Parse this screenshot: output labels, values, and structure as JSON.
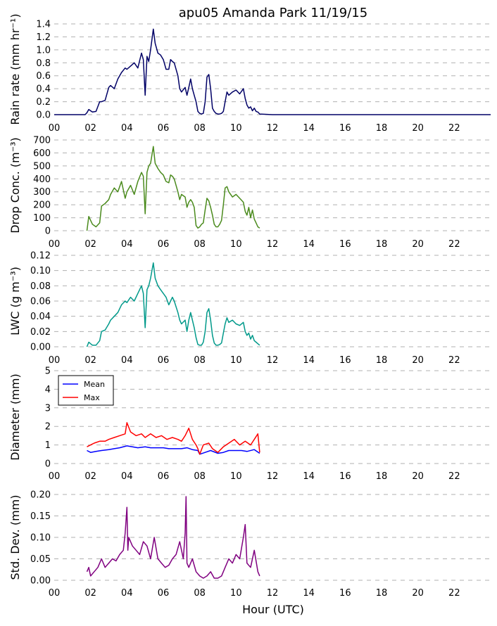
{
  "title": "apu05 Amanda Park 11/19/15",
  "xlabel": "Hour (UTC)",
  "chart_data": [
    {
      "type": "line",
      "ylabel": "Rain rate (mm hr⁻¹)",
      "ylim": [
        0,
        1.4
      ],
      "yticks": [
        "0.0",
        "0.2",
        "0.4",
        "0.6",
        "0.8",
        "1.0",
        "1.2",
        "1.4"
      ],
      "xlim": [
        0,
        24
      ],
      "xticks": [
        "00",
        "02",
        "04",
        "06",
        "08",
        "10",
        "12",
        "14",
        "16",
        "18",
        "20",
        "22"
      ],
      "grid": true,
      "series": [
        {
          "color": "#000066",
          "x": [
            0,
            1.7,
            1.8,
            1.9,
            2.0,
            2.1,
            2.3,
            2.5,
            2.6,
            2.8,
            3.0,
            3.1,
            3.3,
            3.5,
            3.7,
            3.9,
            4.0,
            4.2,
            4.4,
            4.6,
            4.8,
            4.9,
            5.0,
            5.1,
            5.2,
            5.3,
            5.45,
            5.55,
            5.7,
            5.85,
            6.0,
            6.15,
            6.3,
            6.4,
            6.5,
            6.6,
            6.8,
            6.9,
            7.0,
            7.2,
            7.3,
            7.4,
            7.5,
            7.6,
            7.7,
            7.8,
            7.9,
            8.0,
            8.1,
            8.2,
            8.3,
            8.4,
            8.5,
            8.6,
            8.7,
            8.8,
            8.9,
            9.0,
            9.1,
            9.2,
            9.3,
            9.4,
            9.5,
            9.6,
            9.8,
            10.0,
            10.2,
            10.4,
            10.5,
            10.6,
            10.7,
            10.8,
            10.9,
            11.0,
            11.1,
            11.2,
            11.3,
            12,
            24
          ],
          "y": [
            0,
            0,
            0.03,
            0.08,
            0.06,
            0.04,
            0.05,
            0.2,
            0.2,
            0.22,
            0.42,
            0.45,
            0.4,
            0.55,
            0.65,
            0.72,
            0.7,
            0.75,
            0.8,
            0.72,
            0.95,
            0.85,
            0.3,
            0.9,
            0.82,
            1.0,
            1.32,
            1.1,
            0.95,
            0.92,
            0.85,
            0.7,
            0.7,
            0.85,
            0.82,
            0.8,
            0.6,
            0.4,
            0.35,
            0.42,
            0.3,
            0.42,
            0.55,
            0.4,
            0.3,
            0.2,
            0.05,
            0.02,
            0.01,
            0.02,
            0.2,
            0.58,
            0.62,
            0.4,
            0.1,
            0.05,
            0.02,
            0.01,
            0.01,
            0.02,
            0.05,
            0.2,
            0.35,
            0.3,
            0.35,
            0.38,
            0.32,
            0.4,
            0.25,
            0.15,
            0.1,
            0.12,
            0.06,
            0.1,
            0.05,
            0.04,
            0.01,
            0,
            0
          ]
        }
      ]
    },
    {
      "type": "line",
      "ylabel": "Drop Conc. (m⁻³)",
      "ylim": [
        0,
        700
      ],
      "yticks": [
        "0",
        "100",
        "200",
        "300",
        "400",
        "500",
        "600",
        "700"
      ],
      "xlim": [
        0,
        24
      ],
      "xticks": [
        "00",
        "02",
        "04",
        "06",
        "08",
        "10",
        "12",
        "14",
        "16",
        "18",
        "20",
        "22"
      ],
      "grid": true,
      "series": [
        {
          "color": "#4a8a1c",
          "x": [
            1.8,
            1.9,
            2.0,
            2.1,
            2.3,
            2.5,
            2.6,
            2.8,
            3.0,
            3.1,
            3.3,
            3.5,
            3.7,
            3.9,
            4.0,
            4.2,
            4.4,
            4.6,
            4.8,
            4.9,
            5.0,
            5.1,
            5.2,
            5.3,
            5.45,
            5.55,
            5.7,
            5.85,
            6.0,
            6.15,
            6.3,
            6.4,
            6.5,
            6.6,
            6.8,
            6.9,
            7.0,
            7.2,
            7.3,
            7.4,
            7.5,
            7.6,
            7.7,
            7.8,
            7.9,
            8.0,
            8.1,
            8.2,
            8.3,
            8.4,
            8.5,
            8.6,
            8.7,
            8.8,
            8.9,
            9.0,
            9.1,
            9.2,
            9.3,
            9.4,
            9.5,
            9.6,
            9.8,
            10.0,
            10.2,
            10.4,
            10.5,
            10.6,
            10.7,
            10.8,
            10.9,
            11.0,
            11.1,
            11.2,
            11.3
          ],
          "y": [
            0,
            110,
            80,
            50,
            30,
            60,
            190,
            210,
            240,
            280,
            330,
            300,
            380,
            250,
            300,
            350,
            280,
            380,
            450,
            420,
            130,
            450,
            500,
            520,
            650,
            520,
            480,
            450,
            430,
            380,
            370,
            430,
            420,
            400,
            300,
            240,
            280,
            260,
            180,
            220,
            240,
            220,
            180,
            40,
            20,
            30,
            50,
            60,
            160,
            250,
            230,
            180,
            120,
            50,
            30,
            30,
            50,
            80,
            200,
            330,
            340,
            300,
            260,
            280,
            250,
            220,
            150,
            120,
            180,
            100,
            160,
            90,
            60,
            30,
            20
          ]
        }
      ]
    },
    {
      "type": "line",
      "ylabel": "LWC (g m⁻³)",
      "ylim": [
        0,
        0.12
      ],
      "yticks": [
        "0.00",
        "0.02",
        "0.04",
        "0.06",
        "0.08",
        "0.10",
        "0.12"
      ],
      "xlim": [
        0,
        24
      ],
      "xticks": [
        "00",
        "02",
        "04",
        "06",
        "08",
        "10",
        "12",
        "14",
        "16",
        "18",
        "20",
        "22"
      ],
      "grid": true,
      "series": [
        {
          "color": "#00998a",
          "x": [
            1.8,
            1.9,
            2.0,
            2.1,
            2.3,
            2.5,
            2.6,
            2.8,
            3.0,
            3.1,
            3.3,
            3.5,
            3.7,
            3.9,
            4.0,
            4.2,
            4.4,
            4.6,
            4.8,
            4.9,
            5.0,
            5.1,
            5.2,
            5.3,
            5.45,
            5.55,
            5.7,
            5.85,
            6.0,
            6.15,
            6.3,
            6.4,
            6.5,
            6.6,
            6.8,
            6.9,
            7.0,
            7.2,
            7.3,
            7.4,
            7.5,
            7.6,
            7.7,
            7.8,
            7.9,
            8.0,
            8.1,
            8.2,
            8.3,
            8.4,
            8.5,
            8.6,
            8.7,
            8.8,
            8.9,
            9.0,
            9.1,
            9.2,
            9.3,
            9.4,
            9.5,
            9.6,
            9.8,
            10.0,
            10.2,
            10.4,
            10.5,
            10.6,
            10.7,
            10.8,
            10.9,
            11.0,
            11.1,
            11.2,
            11.3
          ],
          "y": [
            0,
            0.006,
            0.004,
            0.002,
            0.002,
            0.008,
            0.02,
            0.022,
            0.03,
            0.035,
            0.04,
            0.045,
            0.055,
            0.06,
            0.058,
            0.065,
            0.06,
            0.07,
            0.08,
            0.07,
            0.025,
            0.075,
            0.08,
            0.09,
            0.11,
            0.09,
            0.08,
            0.075,
            0.07,
            0.065,
            0.055,
            0.06,
            0.065,
            0.06,
            0.045,
            0.035,
            0.03,
            0.035,
            0.02,
            0.035,
            0.045,
            0.035,
            0.025,
            0.012,
            0.003,
            0.002,
            0.002,
            0.006,
            0.02,
            0.045,
            0.05,
            0.035,
            0.015,
            0.005,
            0.002,
            0.002,
            0.003,
            0.005,
            0.018,
            0.03,
            0.038,
            0.032,
            0.035,
            0.03,
            0.028,
            0.032,
            0.02,
            0.015,
            0.018,
            0.01,
            0.015,
            0.008,
            0.006,
            0.004,
            0.002
          ]
        }
      ]
    },
    {
      "type": "line",
      "ylabel": "Diameter (mm)",
      "ylim": [
        0,
        5
      ],
      "yticks": [
        "0",
        "1",
        "2",
        "3",
        "4",
        "5"
      ],
      "xlim": [
        0,
        24
      ],
      "xticks": [
        "00",
        "02",
        "04",
        "06",
        "08",
        "10",
        "12",
        "14",
        "16",
        "18",
        "20",
        "22"
      ],
      "grid": true,
      "legend": "upper-left",
      "series": [
        {
          "name": "Mean",
          "color": "#0000ff",
          "x": [
            1.8,
            2.0,
            2.3,
            2.6,
            3.0,
            3.3,
            3.6,
            4.0,
            4.3,
            4.6,
            5.0,
            5.3,
            5.6,
            6.0,
            6.3,
            6.6,
            7.0,
            7.3,
            7.6,
            7.9,
            8.0,
            8.3,
            8.6,
            9.0,
            9.3,
            9.6,
            10.0,
            10.3,
            10.6,
            11.0,
            11.3
          ],
          "y": [
            0.7,
            0.6,
            0.65,
            0.7,
            0.75,
            0.8,
            0.85,
            0.95,
            0.9,
            0.85,
            0.9,
            0.85,
            0.85,
            0.85,
            0.8,
            0.8,
            0.8,
            0.85,
            0.75,
            0.7,
            0.5,
            0.6,
            0.7,
            0.55,
            0.6,
            0.7,
            0.7,
            0.7,
            0.65,
            0.75,
            0.55
          ]
        },
        {
          "name": "Max",
          "color": "#ff0000",
          "x": [
            1.8,
            2.0,
            2.2,
            2.5,
            2.8,
            3.0,
            3.3,
            3.6,
            3.9,
            4.0,
            4.2,
            4.5,
            4.8,
            5.0,
            5.3,
            5.6,
            5.9,
            6.2,
            6.5,
            6.8,
            7.0,
            7.2,
            7.4,
            7.6,
            7.8,
            7.9,
            8.0,
            8.2,
            8.5,
            8.7,
            9.0,
            9.3,
            9.6,
            9.9,
            10.2,
            10.5,
            10.8,
            11.0,
            11.2,
            11.3
          ],
          "y": [
            0.9,
            1.0,
            1.1,
            1.2,
            1.2,
            1.3,
            1.4,
            1.5,
            1.6,
            2.2,
            1.7,
            1.5,
            1.6,
            1.4,
            1.6,
            1.4,
            1.5,
            1.3,
            1.4,
            1.3,
            1.2,
            1.5,
            1.9,
            1.3,
            1.0,
            0.8,
            0.5,
            1.0,
            1.1,
            0.8,
            0.6,
            0.9,
            1.1,
            1.3,
            1.0,
            1.2,
            1.0,
            1.3,
            1.6,
            0.6
          ]
        }
      ]
    },
    {
      "type": "line",
      "ylabel": "Std. Dev. (mm)",
      "ylim": [
        0,
        0.2
      ],
      "yticks": [
        "0.00",
        "0.05",
        "0.10",
        "0.15",
        "0.20"
      ],
      "xlim": [
        0,
        24
      ],
      "xticks": [
        "00",
        "02",
        "04",
        "06",
        "08",
        "10",
        "12",
        "14",
        "16",
        "18",
        "20",
        "22"
      ],
      "grid": true,
      "series": [
        {
          "color": "#800080",
          "x": [
            1.8,
            1.9,
            2.0,
            2.2,
            2.4,
            2.6,
            2.8,
            3.0,
            3.2,
            3.4,
            3.6,
            3.8,
            3.9,
            4.0,
            4.05,
            4.1,
            4.3,
            4.5,
            4.7,
            4.9,
            5.1,
            5.3,
            5.5,
            5.7,
            5.9,
            6.1,
            6.3,
            6.5,
            6.7,
            6.9,
            7.1,
            7.2,
            7.25,
            7.3,
            7.4,
            7.6,
            7.8,
            8.0,
            8.2,
            8.4,
            8.6,
            8.8,
            9.0,
            9.2,
            9.4,
            9.6,
            9.8,
            10.0,
            10.2,
            10.4,
            10.5,
            10.6,
            10.8,
            11.0,
            11.2,
            11.3
          ],
          "y": [
            0.02,
            0.03,
            0.01,
            0.02,
            0.03,
            0.05,
            0.03,
            0.04,
            0.05,
            0.045,
            0.06,
            0.07,
            0.11,
            0.17,
            0.07,
            0.1,
            0.08,
            0.07,
            0.06,
            0.09,
            0.08,
            0.05,
            0.1,
            0.05,
            0.04,
            0.03,
            0.035,
            0.05,
            0.06,
            0.09,
            0.05,
            0.11,
            0.195,
            0.04,
            0.03,
            0.05,
            0.02,
            0.01,
            0.005,
            0.01,
            0.02,
            0.005,
            0.005,
            0.01,
            0.03,
            0.05,
            0.04,
            0.06,
            0.05,
            0.1,
            0.13,
            0.04,
            0.03,
            0.07,
            0.02,
            0.01
          ]
        }
      ]
    }
  ]
}
